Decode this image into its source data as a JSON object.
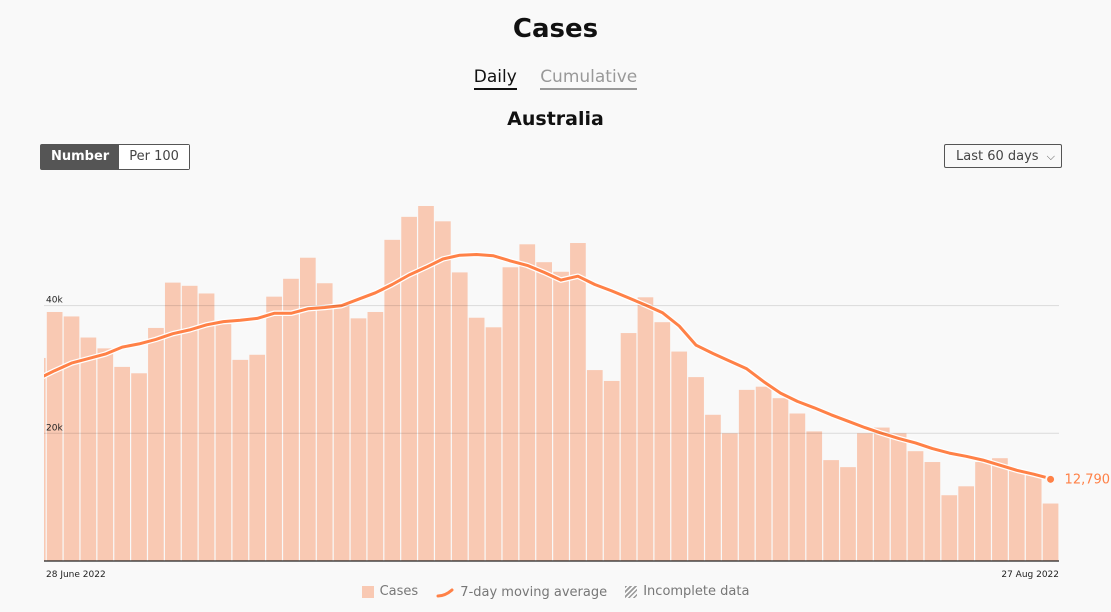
{
  "title": "Cases",
  "tabs": [
    {
      "label": "Daily",
      "active": true
    },
    {
      "label": "Cumulative",
      "active": false
    }
  ],
  "region": "Australia",
  "measure_toggle": {
    "options": [
      "Number",
      "Per 100"
    ],
    "selected": "Number"
  },
  "range_select": {
    "selected": "Last 60 days",
    "icon": "chevron-down-icon"
  },
  "legend": {
    "cases": "Cases",
    "moving_average": "7-day moving average",
    "incomplete": "Incomplete data"
  },
  "colors": {
    "bars": "#f9c9b3",
    "line": "#ff8147",
    "grid": "#dddddd",
    "axis": "#222222"
  },
  "chart_data": {
    "type": "bar",
    "xlabel_start": "28 June 2022",
    "xlabel_end": "27 Aug 2022",
    "yticks": [
      {
        "value": 20000,
        "label": "20k"
      },
      {
        "value": 40000,
        "label": "40k"
      }
    ],
    "ylim": [
      0,
      60000
    ],
    "grid": true,
    "legend": "bottom",
    "last_value_label": "12,790",
    "series": [
      {
        "name": "Cases",
        "type": "bar",
        "values": [
          31800,
          39000,
          38300,
          35000,
          33300,
          30400,
          29400,
          36500,
          43600,
          43100,
          41900,
          37100,
          31500,
          32300,
          41400,
          44200,
          47500,
          43500,
          40000,
          38000,
          39000,
          50300,
          53900,
          55600,
          53200,
          45200,
          38100,
          36600,
          46000,
          49600,
          46800,
          45300,
          49800,
          29900,
          28200,
          35700,
          41300,
          37400,
          32800,
          28800,
          22900,
          20000,
          26800,
          27300,
          25500,
          23100,
          20300,
          15800,
          14700,
          20000,
          20900,
          20000,
          17200,
          15500,
          10300,
          11700,
          15500,
          16100,
          14100,
          13600,
          9000
        ]
      },
      {
        "name": "7-day moving average",
        "type": "line",
        "values": [
          28500,
          29800,
          31000,
          31700,
          32400,
          33500,
          34000,
          34700,
          35600,
          36200,
          37000,
          37500,
          37700,
          38000,
          38800,
          38800,
          39500,
          39700,
          40000,
          41000,
          42000,
          43300,
          44800,
          46000,
          47300,
          47900,
          48000,
          47800,
          47000,
          46300,
          45200,
          44000,
          44600,
          43300,
          42300,
          41200,
          40100,
          38900,
          36800,
          33800,
          32500,
          31300,
          30100,
          28100,
          26300,
          25000,
          24000,
          22900,
          21900,
          20900,
          20000,
          19200,
          18500,
          17600,
          16900,
          16400,
          15800,
          15000,
          14200,
          13600,
          12790
        ]
      }
    ]
  }
}
